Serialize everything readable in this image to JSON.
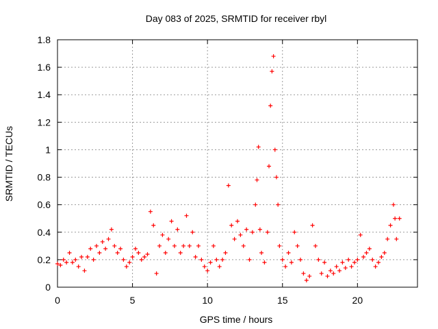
{
  "chart_data": {
    "type": "scatter",
    "title": "Day 083 of 2025, SRMTID for receiver rbyl",
    "xlabel": "GPS time / hours",
    "ylabel": "SRMTID / TECUs",
    "xlim": [
      0,
      24
    ],
    "ylim": [
      0,
      1.8
    ],
    "xticks": [
      0,
      5,
      10,
      15,
      20
    ],
    "xtick_labels": [
      "0",
      "5",
      "10",
      "15",
      "20"
    ],
    "yticks": [
      0,
      0.2,
      0.4,
      0.6,
      0.8,
      1,
      1.2,
      1.4,
      1.6,
      1.8
    ],
    "ytick_labels": [
      "0",
      "0.2",
      "0.4",
      "0.6",
      "0.8",
      "1",
      "1.2",
      "1.4",
      "1.6",
      "1.8"
    ],
    "grid": true,
    "marker": "+",
    "series": [
      {
        "name": "SRMTID",
        "color": "#ff0000",
        "x": [
          0.0,
          0.2,
          0.4,
          0.6,
          0.8,
          1.0,
          1.2,
          1.4,
          1.6,
          1.8,
          2.0,
          2.2,
          2.4,
          2.6,
          2.8,
          3.0,
          3.2,
          3.4,
          3.6,
          3.8,
          4.0,
          4.2,
          4.4,
          4.6,
          4.8,
          5.0,
          5.2,
          5.4,
          5.6,
          5.8,
          6.0,
          6.2,
          6.4,
          6.6,
          6.8,
          7.0,
          7.2,
          7.4,
          7.6,
          7.8,
          8.0,
          8.2,
          8.4,
          8.6,
          8.8,
          9.0,
          9.2,
          9.4,
          9.6,
          9.8,
          10.0,
          10.2,
          10.4,
          10.6,
          10.8,
          11.0,
          11.2,
          11.4,
          11.6,
          11.8,
          12.0,
          12.2,
          12.4,
          12.6,
          12.8,
          13.0,
          13.2,
          13.3,
          13.4,
          13.5,
          13.6,
          13.8,
          14.0,
          14.1,
          14.2,
          14.3,
          14.4,
          14.5,
          14.6,
          14.7,
          14.8,
          15.0,
          15.2,
          15.4,
          15.6,
          15.8,
          16.0,
          16.2,
          16.4,
          16.6,
          16.8,
          17.0,
          17.2,
          17.4,
          17.6,
          17.8,
          18.0,
          18.2,
          18.4,
          18.6,
          18.8,
          19.0,
          19.2,
          19.4,
          19.6,
          19.8,
          20.0,
          20.2,
          20.4,
          20.6,
          20.8,
          21.0,
          21.2,
          21.4,
          21.6,
          21.8,
          22.0,
          22.2,
          22.4,
          22.5,
          22.6,
          22.8
        ],
        "y": [
          0.17,
          0.16,
          0.2,
          0.18,
          0.25,
          0.18,
          0.2,
          0.15,
          0.22,
          0.12,
          0.22,
          0.28,
          0.2,
          0.3,
          0.25,
          0.33,
          0.28,
          0.35,
          0.42,
          0.3,
          0.25,
          0.28,
          0.2,
          0.15,
          0.18,
          0.22,
          0.28,
          0.25,
          0.2,
          0.22,
          0.24,
          0.55,
          0.45,
          0.1,
          0.3,
          0.38,
          0.25,
          0.35,
          0.48,
          0.3,
          0.42,
          0.25,
          0.3,
          0.52,
          0.3,
          0.4,
          0.22,
          0.3,
          0.2,
          0.15,
          0.12,
          0.18,
          0.3,
          0.2,
          0.15,
          0.2,
          0.25,
          0.74,
          0.45,
          0.35,
          0.48,
          0.38,
          0.3,
          0.42,
          0.2,
          0.4,
          0.6,
          0.78,
          1.02,
          0.42,
          0.25,
          0.18,
          0.4,
          0.88,
          1.32,
          1.57,
          1.68,
          1.0,
          0.8,
          0.6,
          0.3,
          0.2,
          0.15,
          0.25,
          0.18,
          0.4,
          0.3,
          0.2,
          0.1,
          0.05,
          0.08,
          0.45,
          0.3,
          0.2,
          0.1,
          0.18,
          0.08,
          0.12,
          0.1,
          0.15,
          0.12,
          0.18,
          0.14,
          0.2,
          0.15,
          0.18,
          0.2,
          0.38,
          0.22,
          0.25,
          0.28,
          0.2,
          0.15,
          0.18,
          0.22,
          0.25,
          0.35,
          0.45,
          0.6,
          0.5,
          0.35,
          0.5
        ]
      }
    ]
  }
}
